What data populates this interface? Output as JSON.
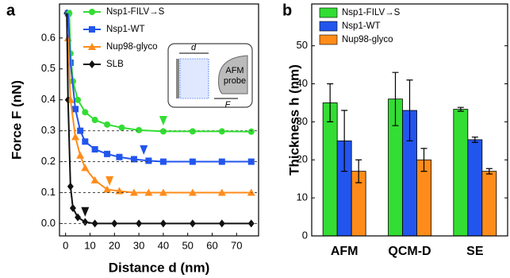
{
  "chart_data": [
    {
      "type": "line",
      "panel": "a",
      "xlabel": "Distance d (nm)",
      "ylabel": "Force F (nN)",
      "xlim": [
        -2.5,
        79
      ],
      "xticks": [
        0,
        10,
        20,
        30,
        40,
        50,
        60,
        70
      ],
      "ylim": [
        -0.04,
        0.71
      ],
      "yticks": [
        {
          "value": 0,
          "label": "0.0"
        },
        0.1,
        0.2,
        0.3,
        0.4,
        0.5,
        0.6
      ],
      "reference_lines": [
        0.3,
        0.2,
        0.1,
        0
      ],
      "series": [
        {
          "name": "Nsp1-FILV→S",
          "color": "#33dd33",
          "marker": "circle",
          "x": [
            1.5,
            2,
            3,
            5,
            8,
            12,
            17,
            23,
            30,
            40,
            52,
            64,
            76
          ],
          "values": [
            0.68,
            0.55,
            0.46,
            0.4,
            0.36,
            0.335,
            0.32,
            0.31,
            0.302,
            0.298,
            0.298,
            0.298,
            0.297
          ],
          "arrow": [
            40,
            0.33
          ]
        },
        {
          "name": "Nsp1-WT",
          "color": "#2255ee",
          "marker": "square",
          "x": [
            1,
            2,
            4,
            6,
            8,
            12,
            17,
            22,
            28,
            34,
            40,
            52,
            64,
            76
          ],
          "values": [
            0.68,
            0.52,
            0.37,
            0.3,
            0.265,
            0.24,
            0.225,
            0.215,
            0.208,
            0.203,
            0.2,
            0.2,
            0.2,
            0.2
          ],
          "arrow": [
            32,
            0.235
          ]
        },
        {
          "name": "Nup98-glyco",
          "color": "#ff8c1a",
          "marker": "triangle",
          "x": [
            1,
            2,
            4,
            6,
            8,
            12,
            17,
            22,
            28,
            34,
            40,
            52,
            64,
            76
          ],
          "values": [
            0.6,
            0.4,
            0.28,
            0.22,
            0.18,
            0.14,
            0.11,
            0.105,
            0.1,
            0.1,
            0.1,
            0.1,
            0.1,
            0.1
          ],
          "arrow": [
            18,
            0.135
          ]
        },
        {
          "name": "SLB",
          "color": "#111111",
          "marker": "diamond",
          "x": [
            0.5,
            1,
            2,
            3,
            5,
            8,
            12,
            20,
            30,
            40,
            52,
            64,
            76
          ],
          "values": [
            0.68,
            0.4,
            0.12,
            0.05,
            0.02,
            0.005,
            0,
            0,
            0,
            0,
            0,
            0,
            0
          ],
          "arrow": [
            8,
            0.035
          ]
        }
      ],
      "inset_labels": [
        "d",
        "AFM",
        "probe",
        "F"
      ]
    },
    {
      "type": "bar",
      "panel": "b",
      "ylabel": "Thickness h (nm)",
      "categories": [
        "AFM",
        "QCM-D",
        "SE"
      ],
      "ylim": [
        0,
        61
      ],
      "yticks": [
        0,
        10,
        20,
        30,
        40,
        50
      ],
      "series": [
        {
          "name": "Nsp1-FILV→S",
          "color": "#33dd33",
          "values": [
            35,
            36,
            33.3
          ],
          "errors": [
            5,
            7,
            0.5
          ]
        },
        {
          "name": "Nsp1-WT",
          "color": "#2255ee",
          "values": [
            25,
            33,
            25.3
          ],
          "errors": [
            8,
            8,
            0.7
          ]
        },
        {
          "name": "Nup98-glyco",
          "color": "#ff8c1a",
          "values": [
            17,
            20,
            17
          ],
          "errors": [
            3,
            3,
            0.7
          ]
        }
      ]
    }
  ]
}
